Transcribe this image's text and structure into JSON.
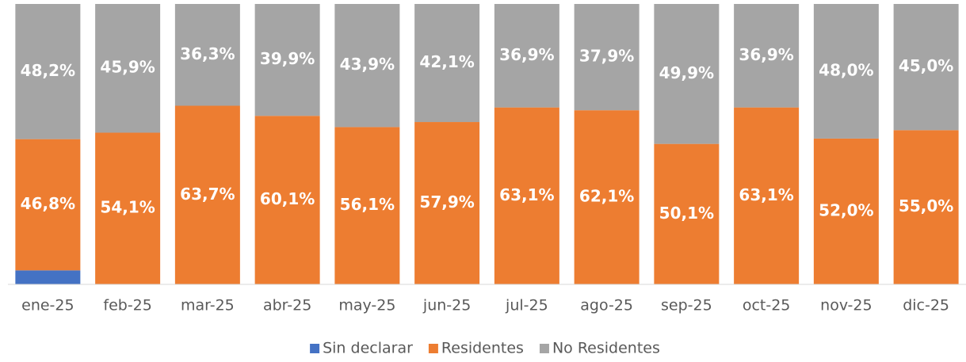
{
  "chart_data": {
    "type": "stacked_bar",
    "categories": [
      "ene-25",
      "feb-25",
      "mar-25",
      "abr-25",
      "may-25",
      "jun-25",
      "jul-25",
      "ago-25",
      "sep-25",
      "oct-25",
      "nov-25",
      "dic-25"
    ],
    "series": [
      {
        "name": "Sin declarar",
        "color": "#4472c4",
        "values": [
          5.0,
          0,
          0,
          0,
          0,
          0,
          0,
          0,
          0,
          0,
          0,
          0
        ]
      },
      {
        "name": "Residentes",
        "color": "#ed7d31",
        "values": [
          46.8,
          54.1,
          63.7,
          60.1,
          56.1,
          57.9,
          63.1,
          62.1,
          50.1,
          63.1,
          52.0,
          55.0
        ],
        "value_labels": [
          "46,8%",
          "54,1%",
          "63,7%",
          "60,1%",
          "56,1%",
          "57,9%",
          "63,1%",
          "62,1%",
          "50,1%",
          "63,1%",
          "52,0%",
          "55,0%"
        ]
      },
      {
        "name": "No Residentes",
        "color": "#a5a5a5",
        "values": [
          48.2,
          45.9,
          36.3,
          39.9,
          43.9,
          42.1,
          36.9,
          37.9,
          49.9,
          36.9,
          48.0,
          45.0
        ],
        "value_labels": [
          "48,2%",
          "45,9%",
          "36,3%",
          "39,9%",
          "43,9%",
          "42,1%",
          "36,9%",
          "37,9%",
          "49,9%",
          "36,9%",
          "48,0%",
          "45,0%"
        ]
      }
    ],
    "ylim": [
      0,
      100
    ],
    "legend": "bottom"
  }
}
